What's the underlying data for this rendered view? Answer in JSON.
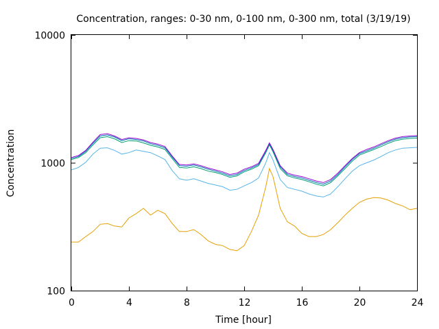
{
  "chart_data": {
    "type": "line",
    "title": "Concentration, ranges: 0-30 nm, 0-100 nm, 0-300 nm, total (3/19/19)",
    "xlabel": "Time [hour]",
    "ylabel": "Concentration",
    "xlim": [
      0,
      24
    ],
    "ylim": [
      100,
      10000
    ],
    "yscale": "log",
    "grid": false,
    "x_ticks": [
      0,
      4,
      8,
      12,
      16,
      20,
      24
    ],
    "x_tick_labels": [
      "0",
      "4",
      "8",
      "12",
      "16",
      "20",
      "24"
    ],
    "y_ticks": [
      100,
      1000,
      10000
    ],
    "y_tick_labels": [
      "100",
      "1000",
      "10000"
    ],
    "series": [
      {
        "color": "#e69f00",
        "x": [
          0,
          0.5,
          1,
          1.5,
          2,
          2.5,
          3,
          3.5,
          4,
          4.5,
          5,
          5.5,
          6,
          6.5,
          7,
          7.5,
          8,
          8.5,
          9,
          9.5,
          10,
          10.5,
          11,
          11.5,
          12,
          12.5,
          13,
          13.5,
          13.75,
          14,
          14.5,
          15,
          15.5,
          16,
          16.5,
          17,
          17.5,
          18,
          18.5,
          19,
          19.5,
          20,
          20.5,
          21,
          21.5,
          22,
          22.5,
          23,
          23.5,
          24
        ],
        "y": [
          240,
          240,
          265,
          290,
          330,
          335,
          320,
          315,
          370,
          400,
          440,
          390,
          425,
          400,
          335,
          290,
          290,
          300,
          275,
          245,
          230,
          225,
          210,
          205,
          225,
          290,
          390,
          650,
          900,
          780,
          440,
          345,
          320,
          280,
          265,
          265,
          275,
          300,
          340,
          390,
          440,
          490,
          520,
          535,
          530,
          510,
          480,
          460,
          430,
          440
        ]
      },
      {
        "color": "#56b4e9",
        "x": [
          0,
          0.5,
          1,
          1.5,
          2,
          2.5,
          3,
          3.5,
          4,
          4.5,
          5,
          5.5,
          6,
          6.5,
          7,
          7.5,
          8,
          8.5,
          9,
          9.5,
          10,
          10.5,
          11,
          11.5,
          12,
          12.5,
          13,
          13.5,
          13.75,
          14,
          14.5,
          15,
          15.5,
          16,
          16.5,
          17,
          17.5,
          18,
          18.5,
          19,
          19.5,
          20,
          20.5,
          21,
          21.5,
          22,
          22.5,
          23,
          23.5,
          24
        ],
        "y": [
          880,
          920,
          1010,
          1170,
          1300,
          1310,
          1250,
          1170,
          1200,
          1260,
          1230,
          1200,
          1130,
          1060,
          870,
          750,
          730,
          750,
          720,
          690,
          670,
          650,
          610,
          620,
          660,
          700,
          760,
          1000,
          1200,
          1050,
          740,
          640,
          620,
          600,
          570,
          550,
          540,
          570,
          650,
          750,
          860,
          950,
          1000,
          1050,
          1120,
          1200,
          1260,
          1300,
          1310,
          1320
        ]
      },
      {
        "color": "#009e73",
        "x": [
          0,
          0.5,
          1,
          1.5,
          2,
          2.5,
          3,
          3.5,
          4,
          4.5,
          5,
          5.5,
          6,
          6.5,
          7,
          7.5,
          8,
          8.5,
          9,
          9.5,
          10,
          10.5,
          11,
          11.5,
          12,
          12.5,
          13,
          13.5,
          13.75,
          14,
          14.5,
          15,
          15.5,
          16,
          16.5,
          17,
          17.5,
          18,
          18.5,
          19,
          19.5,
          20,
          20.5,
          21,
          21.5,
          22,
          22.5,
          23,
          23.5,
          24
        ],
        "y": [
          1060,
          1100,
          1200,
          1380,
          1570,
          1600,
          1540,
          1440,
          1490,
          1480,
          1430,
          1370,
          1330,
          1270,
          1080,
          920,
          910,
          930,
          900,
          860,
          840,
          810,
          770,
          790,
          850,
          890,
          950,
          1200,
          1380,
          1220,
          900,
          790,
          760,
          740,
          710,
          680,
          660,
          700,
          790,
          900,
          1030,
          1150,
          1210,
          1270,
          1340,
          1420,
          1490,
          1530,
          1550,
          1560
        ]
      },
      {
        "color": "#0072b2",
        "x": [
          0,
          0.5,
          1,
          1.5,
          2,
          2.5,
          3,
          3.5,
          4,
          4.5,
          5,
          5.5,
          6,
          6.5,
          7,
          7.5,
          8,
          8.5,
          9,
          9.5,
          10,
          10.5,
          11,
          11.5,
          12,
          12.5,
          13,
          13.5,
          13.75,
          14,
          14.5,
          15,
          15.5,
          16,
          16.5,
          17,
          17.5,
          18,
          18.5,
          19,
          19.5,
          20,
          20.5,
          21,
          21.5,
          22,
          22.5,
          23,
          23.5,
          24
        ],
        "y": [
          1080,
          1120,
          1230,
          1420,
          1620,
          1650,
          1590,
          1490,
          1540,
          1520,
          1480,
          1410,
          1370,
          1310,
          1110,
          950,
          940,
          960,
          930,
          890,
          860,
          830,
          790,
          810,
          870,
          910,
          970,
          1230,
          1410,
          1250,
          930,
          810,
          780,
          760,
          730,
          700,
          680,
          720,
          810,
          930,
          1060,
          1180,
          1240,
          1300,
          1380,
          1460,
          1530,
          1570,
          1590,
          1600
        ]
      },
      {
        "color": "#9400d3",
        "x": [
          0,
          0.5,
          1,
          1.5,
          2,
          2.5,
          3,
          3.5,
          4,
          4.5,
          5,
          5.5,
          6,
          6.5,
          7,
          7.5,
          8,
          8.5,
          9,
          9.5,
          10,
          10.5,
          11,
          11.5,
          12,
          12.5,
          13,
          13.5,
          13.75,
          14,
          14.5,
          15,
          15.5,
          16,
          16.5,
          17,
          17.5,
          18,
          18.5,
          19,
          19.5,
          20,
          20.5,
          21,
          21.5,
          22,
          22.5,
          23,
          23.5,
          24
        ],
        "y": [
          1100,
          1140,
          1250,
          1450,
          1660,
          1690,
          1620,
          1520,
          1570,
          1550,
          1510,
          1440,
          1400,
          1340,
          1130,
          970,
          960,
          980,
          950,
          910,
          880,
          850,
          810,
          830,
          890,
          930,
          990,
          1250,
          1430,
          1270,
          950,
          830,
          800,
          780,
          750,
          720,
          700,
          740,
          830,
          950,
          1080,
          1200,
          1270,
          1330,
          1410,
          1490,
          1560,
          1600,
          1620,
          1630
        ]
      }
    ]
  }
}
